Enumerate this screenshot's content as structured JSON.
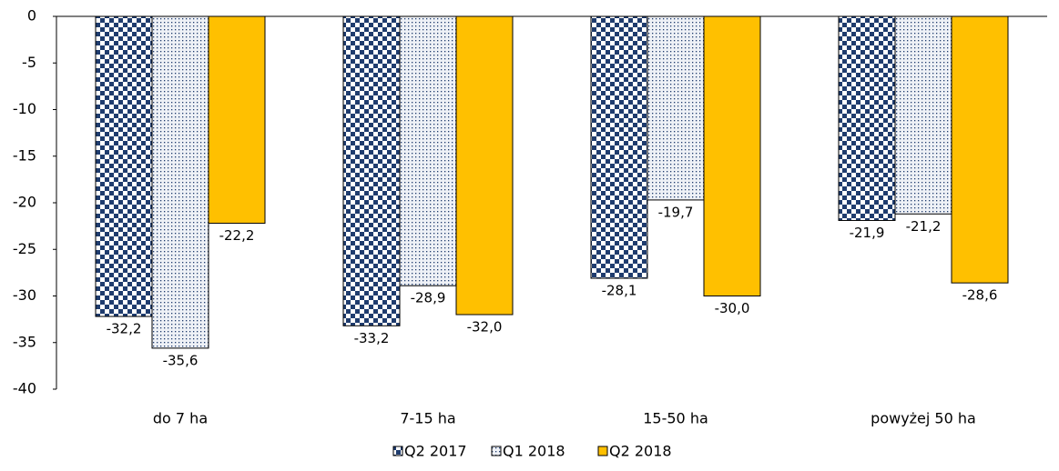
{
  "chart_data": {
    "type": "bar",
    "categories": [
      "do 7 ha",
      "7-15 ha",
      "15-50 ha",
      "powyżej 50 ha"
    ],
    "series": [
      {
        "name": "Q2 2017",
        "color": "#1f3c6e",
        "pattern": "checkerboard",
        "values": [
          -32.2,
          -33.2,
          -28.1,
          -21.9
        ],
        "value_labels": [
          "-32,2",
          "-33,2",
          "-28,1",
          "-21,9"
        ]
      },
      {
        "name": "Q1 2018",
        "color": "#1f3c6e",
        "pattern": "dotted",
        "values": [
          -35.6,
          -28.9,
          -19.7,
          -21.2
        ],
        "value_labels": [
          "-35,6",
          "-28,9",
          "-19,7",
          "-21,2"
        ]
      },
      {
        "name": "Q2 2018",
        "color": "#ffc000",
        "pattern": "solid",
        "values": [
          -22.2,
          -32.0,
          -30.0,
          -28.6
        ],
        "value_labels": [
          "-22,2",
          "-32,0",
          "-30,0",
          "-28,6"
        ]
      }
    ],
    "ylim": [
      -40,
      0
    ],
    "yticks": [
      0,
      -5,
      -10,
      -15,
      -20,
      -25,
      -30,
      -35,
      -40
    ],
    "legend": "bottom"
  }
}
